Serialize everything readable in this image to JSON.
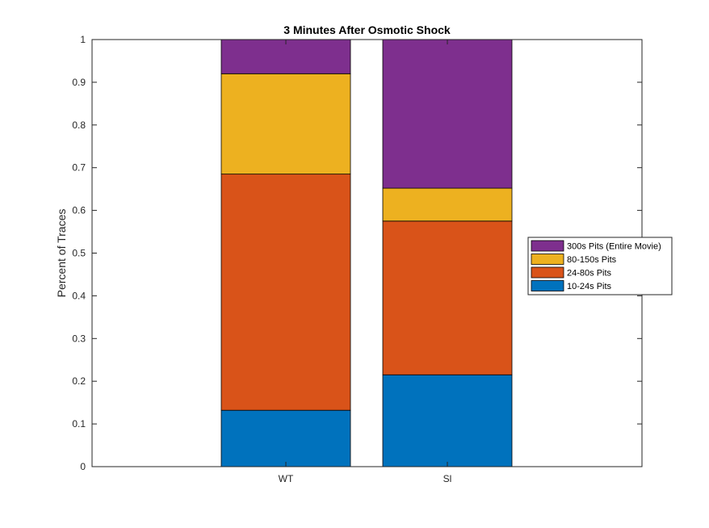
{
  "chart_data": {
    "type": "bar",
    "stacked": true,
    "title": "3 Minutes After Osmotic Shock",
    "xlabel": "",
    "ylabel": "Percent of Traces",
    "categories": [
      "WT",
      "Sl"
    ],
    "ylim": [
      0,
      1
    ],
    "yticks": [
      "0",
      "0.1",
      "0.2",
      "0.3",
      "0.4",
      "0.5",
      "0.6",
      "0.7",
      "0.8",
      "0.9",
      "1"
    ],
    "grid": false,
    "legend_position": "right",
    "series": [
      {
        "name": "10-24s Pits",
        "color": "#0072BD",
        "values": [
          0.132,
          0.215
        ]
      },
      {
        "name": "24-80s Pits",
        "color": "#D95319",
        "values": [
          0.553,
          0.36
        ]
      },
      {
        "name": "80-150s Pits",
        "color": "#EDB120",
        "values": [
          0.235,
          0.077
        ]
      },
      {
        "name": "300s Pits (Entire Movie)",
        "color": "#7E2F8E",
        "values": [
          0.08,
          0.348
        ]
      }
    ]
  }
}
